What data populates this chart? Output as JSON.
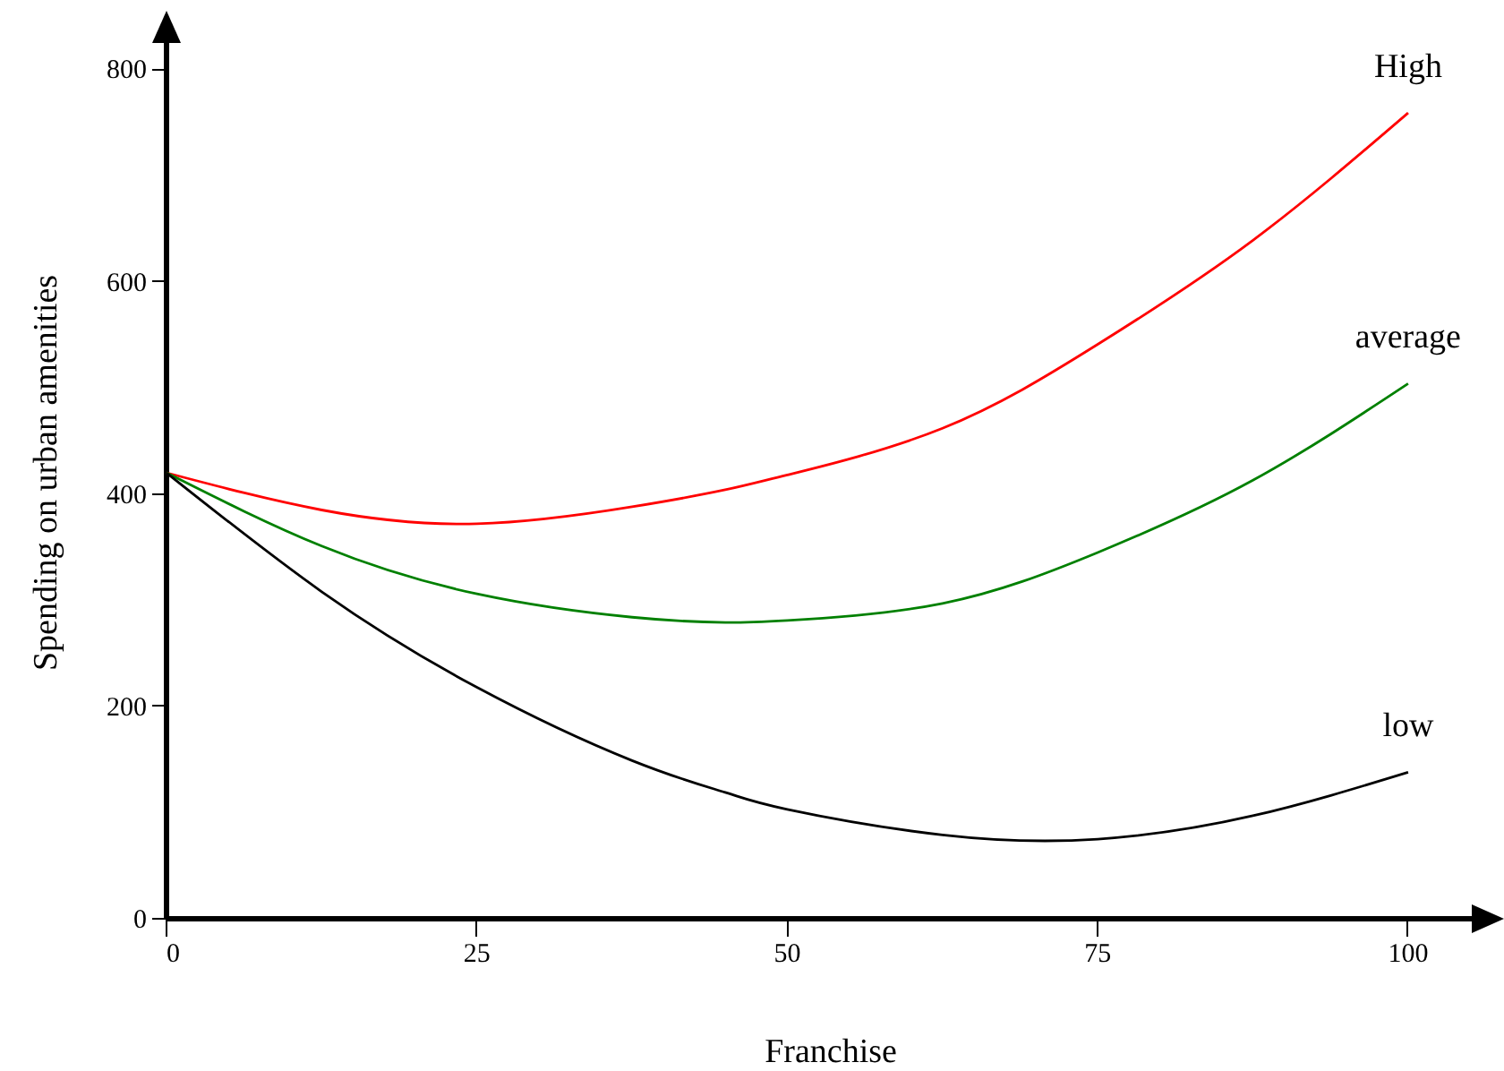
{
  "chart_data": {
    "type": "line",
    "xlabel": "Franchise",
    "ylabel": "Spending on urban amenities",
    "x": [
      0,
      12.5,
      25,
      37.5,
      45,
      50,
      62.5,
      75,
      87.5,
      100
    ],
    "series": [
      {
        "name": "High",
        "color": "#ff0000",
        "values": [
          420,
          385,
          372,
          388,
          404,
          418,
          462,
          541,
          639,
          759
        ]
      },
      {
        "name": "average",
        "color": "#008000",
        "values": [
          420,
          351,
          306,
          284,
          279,
          281,
          297,
          345,
          413,
          504
        ]
      },
      {
        "name": "low",
        "color": "#000000",
        "values": [
          420,
          308,
          218,
          149,
          119,
          103,
          79,
          75,
          97,
          138
        ]
      }
    ],
    "xlim": [
      0,
      107
    ],
    "ylim": [
      0,
      840
    ],
    "xticks": [
      0,
      25,
      50,
      75,
      100
    ],
    "yticks": [
      0,
      200,
      400,
      600,
      800
    ],
    "grid": false,
    "legend": false,
    "marker": "none",
    "line_style": "solid"
  }
}
